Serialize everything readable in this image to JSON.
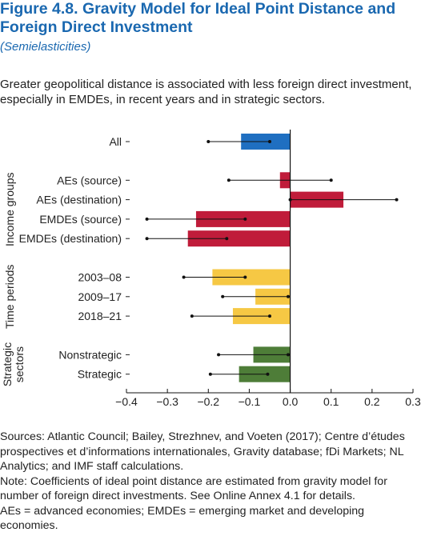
{
  "figure": {
    "title_line1": "Figure 4.8.  Gravity Model for Ideal Point Distance and",
    "title_line2": "Foreign Direct Investment",
    "subtitle": "(Semielasticities)",
    "description": "Greater geopolitical distance is associated with less foreign direct investment, especially in EMDEs, in recent years and in strategic sectors."
  },
  "notes": {
    "sources": "Sources: Atlantic Council; Bailey, Strezhnev, and Voeten (2017); Centre d’études prospectives et d’informations internationales, Gravity database; fDi Markets; NL Analytics; and IMF staff calculations.",
    "note": "Note: Coefficients of ideal point distance are estimated from gravity model for number of foreign direct investments. See Online Annex 4.1 for details.",
    "abbrev": "AEs = advanced economies; EMDEs = emerging market and developing economies."
  },
  "colors": {
    "all": "#1f6fc1",
    "income": "#c01c3a",
    "time": "#f6c844",
    "strategic": "#4e7d38"
  },
  "chart_data": {
    "type": "bar",
    "orientation": "horizontal",
    "xlim": [
      -0.4,
      0.3
    ],
    "xticks": [
      "−0.4",
      "−0.3",
      "−0.2",
      "−0.1",
      "0.0",
      "0.1",
      "0.2",
      "0.3"
    ],
    "xtick_values": [
      -0.4,
      -0.3,
      -0.2,
      -0.1,
      0.0,
      0.1,
      0.2,
      0.3
    ],
    "groups": [
      {
        "label": "",
        "color_key": "all",
        "rows": [
          {
            "category": "All",
            "value": -0.12,
            "ci": [
              -0.2,
              -0.05
            ]
          }
        ]
      },
      {
        "label": "Income groups",
        "color_key": "income",
        "rows": [
          {
            "category": "AEs (source)",
            "value": -0.025,
            "ci": [
              -0.15,
              0.1
            ]
          },
          {
            "category": "AEs (destination)",
            "value": 0.13,
            "ci": [
              0.0,
              0.26
            ]
          },
          {
            "category": "EMDEs (source)",
            "value": -0.23,
            "ci": [
              -0.35,
              -0.11
            ]
          },
          {
            "category": "EMDEs (destination)",
            "value": -0.25,
            "ci": [
              -0.35,
              -0.155
            ]
          }
        ]
      },
      {
        "label": "Time periods",
        "color_key": "time",
        "rows": [
          {
            "category": "2003–08",
            "value": -0.19,
            "ci": [
              -0.26,
              -0.11
            ]
          },
          {
            "category": "2009–17",
            "value": -0.085,
            "ci": [
              -0.165,
              -0.005
            ]
          },
          {
            "category": "2018–21",
            "value": -0.14,
            "ci": [
              -0.24,
              -0.05
            ]
          }
        ]
      },
      {
        "label": "Strategic sectors",
        "label_lines": [
          "Strategic",
          "sectors"
        ],
        "color_key": "strategic",
        "rows": [
          {
            "category": "Nonstrategic",
            "value": -0.09,
            "ci": [
              -0.175,
              -0.005
            ]
          },
          {
            "category": "Strategic",
            "value": -0.125,
            "ci": [
              -0.195,
              -0.055
            ]
          }
        ]
      }
    ]
  }
}
